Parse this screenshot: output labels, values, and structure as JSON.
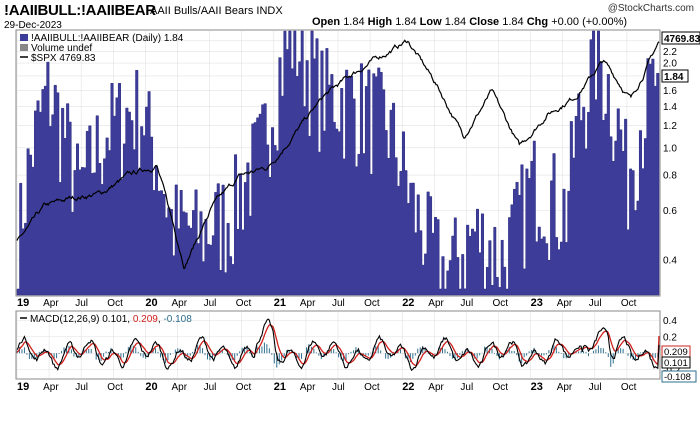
{
  "header": {
    "symbol": "!AAIIBULL:!AAIIBEAR",
    "description": "AAII Bulls/AAII Bears",
    "exchange": "INDX",
    "date": "29-Dec-2023",
    "watermark": "@StockCharts.com",
    "ohlc": {
      "open_label": "Open",
      "open": "1.84",
      "high_label": "High",
      "high": "1.84",
      "low_label": "Low",
      "low": "1.84",
      "close_label": "Close",
      "close": "1.84",
      "chg_label": "Chg",
      "chg": "+0.00 (+0.00%)"
    }
  },
  "legend": {
    "main": "!AAIIBULL:!AAIIBEAR (Daily) 1.84",
    "volume": "Volume undef",
    "spx": "$SPX 4769.83"
  },
  "price_tags": {
    "spx": "4769.83",
    "ratio": "1.84"
  },
  "macd_legend": {
    "prefix": "MACD(12,26,9)",
    "macd": "0.101",
    "signal": "0.209",
    "hist": "-0.108"
  },
  "macd_tags": {
    "signal": "0.209",
    "macd": "0.101",
    "hist": "-0.108"
  },
  "colors": {
    "area": "#3d3d99",
    "spx": "#000000",
    "macd": "#000000",
    "signal": "#d0201c",
    "hist": "#2e6f8e",
    "grid": "#cccccc"
  },
  "chart_data": [
    {
      "type": "area",
      "title": "!AAIIBULL:!AAIIBEAR",
      "y_scale": "log",
      "ylim": [
        0.3,
        2.6
      ],
      "y_ticks": [
        "2.4",
        "2.2",
        "2.0",
        "1.8",
        "1.6",
        "1.4",
        "1.2",
        "1.0",
        "0.8",
        "0.6",
        "0.4"
      ],
      "x_tick_labels": [
        "19",
        "Apr",
        "Jul",
        "Oct",
        "20",
        "Apr",
        "Jul",
        "Oct",
        "21",
        "Apr",
        "Jul",
        "Oct",
        "22",
        "Apr",
        "Jul",
        "Oct",
        "23",
        "Apr",
        "Jul",
        "Oct"
      ],
      "series": [
        {
          "name": "!AAIIBULL:!AAIIBEAR",
          "x": [
            "2019-01",
            "2019-04",
            "2019-07",
            "2019-10",
            "2020-01",
            "2020-03",
            "2020-04",
            "2020-07",
            "2020-10",
            "2021-01",
            "2021-04",
            "2021-07",
            "2021-10",
            "2022-01",
            "2022-04",
            "2022-07",
            "2022-10",
            "2023-01",
            "2023-04",
            "2023-07",
            "2023-10",
            "2023-12"
          ],
          "values": [
            0.45,
            1.6,
            0.7,
            1.2,
            1.4,
            0.55,
            0.5,
            0.6,
            1.0,
            2.5,
            1.6,
            1.5,
            1.3,
            0.6,
            0.35,
            0.5,
            0.4,
            0.8,
            0.6,
            2.2,
            0.8,
            1.84
          ]
        },
        {
          "name": "$SPX",
          "x": [
            "2019-01",
            "2019-04",
            "2019-07",
            "2019-10",
            "2020-01",
            "2020-02",
            "2020-03",
            "2020-04",
            "2020-07",
            "2020-10",
            "2021-01",
            "2021-04",
            "2021-07",
            "2021-10",
            "2022-01",
            "2022-04",
            "2022-06",
            "2022-08",
            "2022-10",
            "2023-01",
            "2023-04",
            "2023-07",
            "2023-10",
            "2023-12"
          ],
          "values": [
            2500,
            2900,
            3000,
            3050,
            3250,
            3380,
            2240,
            2900,
            3250,
            3350,
            3750,
            4150,
            4400,
            4600,
            4780,
            4300,
            3700,
            4200,
            3580,
            3950,
            4150,
            4550,
            4120,
            4769.83
          ]
        }
      ]
    },
    {
      "type": "line",
      "title": "MACD(12,26,9)",
      "ylim": [
        -0.3,
        0.5
      ],
      "y_ticks": [
        "0.4",
        "0.2",
        "0.0",
        "-0.2"
      ],
      "x_tick_labels": [
        "19",
        "Apr",
        "Jul",
        "Oct",
        "20",
        "Apr",
        "Jul",
        "Oct",
        "21",
        "Apr",
        "Jul",
        "Oct",
        "22",
        "Apr",
        "Jul",
        "Oct",
        "23",
        "Apr",
        "Jul",
        "Oct"
      ],
      "series": [
        {
          "name": "MACD",
          "last": 0.101
        },
        {
          "name": "Signal",
          "last": 0.209
        },
        {
          "name": "Histogram",
          "last": -0.108
        }
      ]
    }
  ]
}
